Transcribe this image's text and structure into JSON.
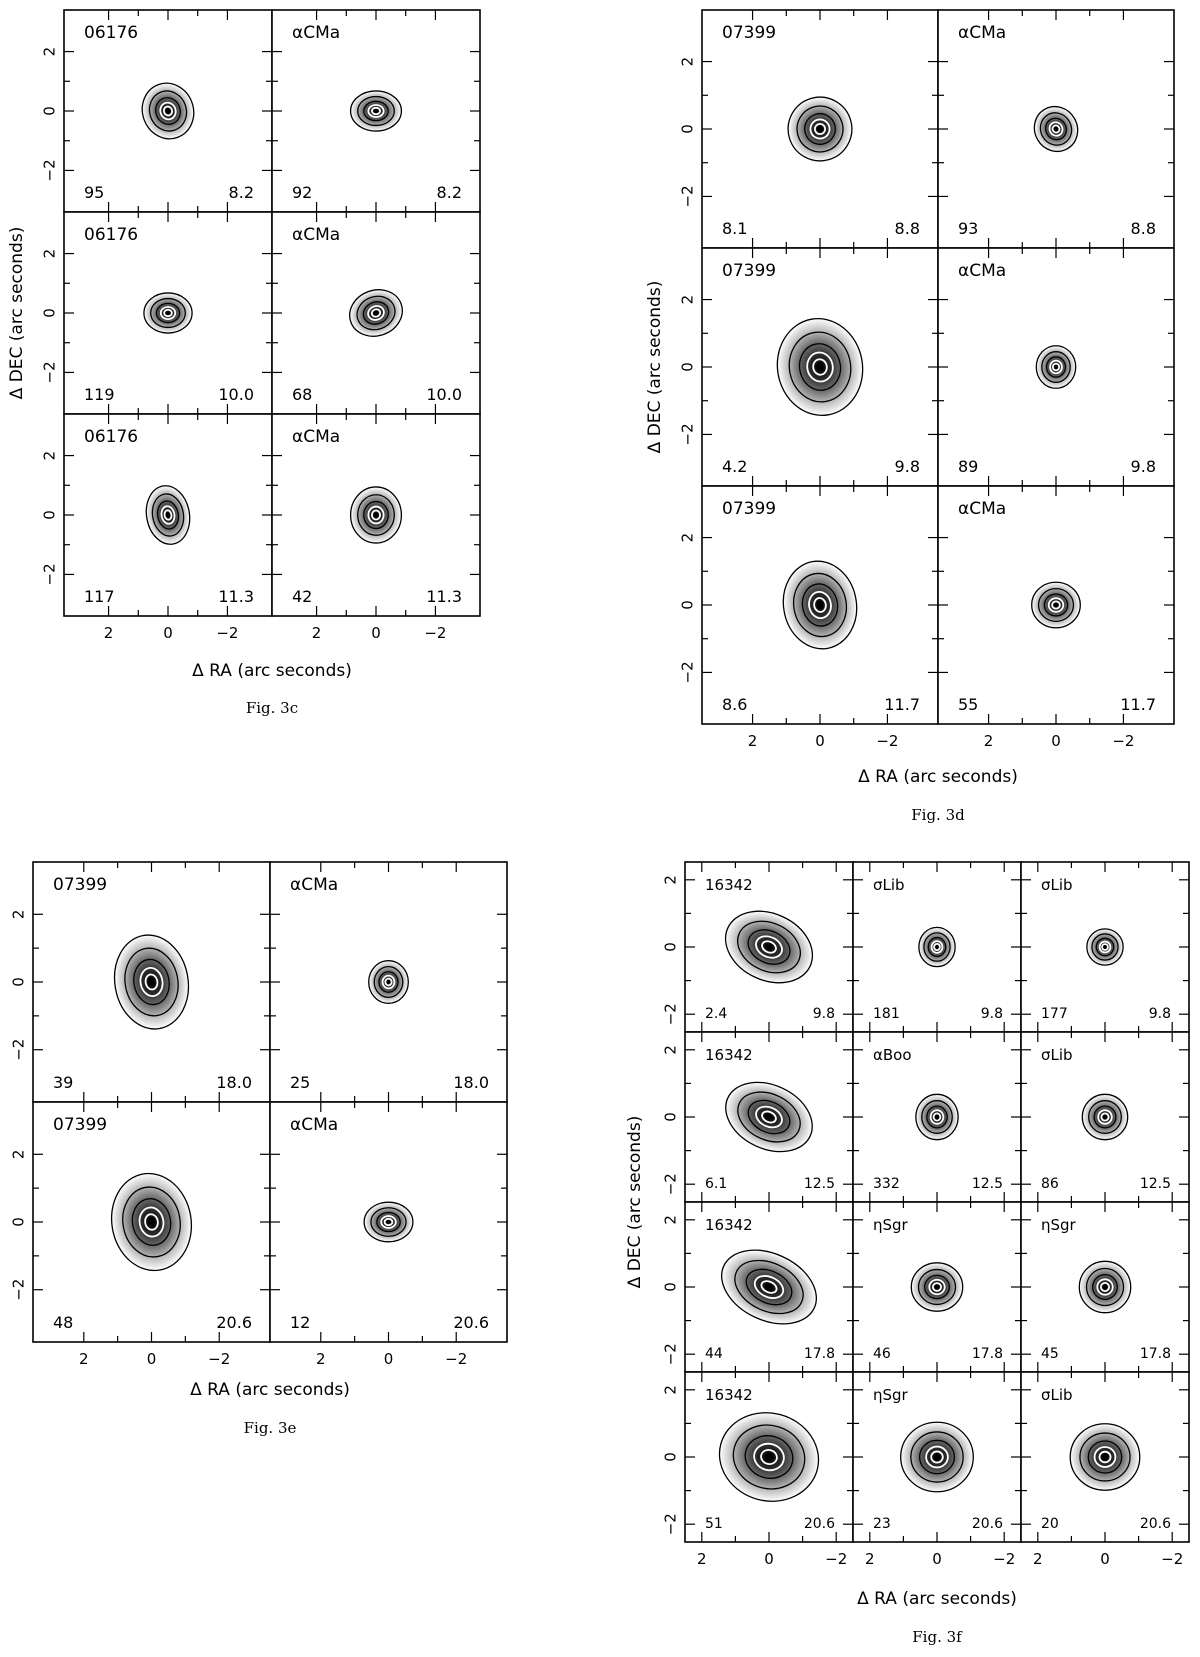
{
  "figures": [
    {
      "id": "fig3c",
      "caption": "Fig. 3c",
      "xlabel": "Δ RA (arc seconds)",
      "ylabel": "Δ DEC (arc seconds)",
      "x_ticks": [
        "2",
        "0",
        "−2"
      ],
      "y_ticks": [
        "2",
        "0",
        "−2"
      ],
      "panels": [
        {
          "row": 0,
          "col": 0,
          "name": "06176",
          "count": "95",
          "wl": "8.2",
          "shape": {
            "sx": 0.95,
            "sy": 1.05,
            "rot": -20,
            "dark": 0.95
          }
        },
        {
          "row": 0,
          "col": 1,
          "name": "αCMa",
          "count": "92",
          "wl": "8.2",
          "shape": {
            "sx": 0.95,
            "sy": 0.75,
            "rot": 0,
            "dark": 0.95
          }
        },
        {
          "row": 1,
          "col": 0,
          "name": "06176",
          "count": "119",
          "wl": "10.0",
          "shape": {
            "sx": 0.9,
            "sy": 0.75,
            "rot": 0,
            "dark": 0.95
          }
        },
        {
          "row": 1,
          "col": 1,
          "name": "αCMa",
          "count": "68",
          "wl": "10.0",
          "shape": {
            "sx": 1.0,
            "sy": 0.85,
            "rot": -20,
            "dark": 0.95
          }
        },
        {
          "row": 2,
          "col": 0,
          "name": "06176",
          "count": "117",
          "wl": "11.3",
          "shape": {
            "sx": 0.8,
            "sy": 1.1,
            "rot": -10,
            "dark": 0.95
          }
        },
        {
          "row": 2,
          "col": 1,
          "name": "αCMa",
          "count": "42",
          "wl": "11.3",
          "shape": {
            "sx": 0.95,
            "sy": 1.05,
            "rot": 0,
            "dark": 0.95
          }
        }
      ]
    },
    {
      "id": "fig3d",
      "caption": "Fig. 3d",
      "xlabel": "Δ RA (arc seconds)",
      "ylabel": "Δ DEC (arc seconds)",
      "x_ticks": [
        "2",
        "0",
        "−2"
      ],
      "y_ticks": [
        "2",
        "0",
        "−2"
      ],
      "panels": [
        {
          "row": 0,
          "col": 0,
          "name": "07399",
          "count": "8.1",
          "wl": "8.8",
          "shape": {
            "sx": 1.05,
            "sy": 1.05,
            "rot": -15,
            "dark": 1.0
          }
        },
        {
          "row": 0,
          "col": 1,
          "name": "αCMa",
          "count": "93",
          "wl": "8.8",
          "shape": {
            "sx": 0.7,
            "sy": 0.75,
            "rot": -30,
            "dark": 1.0
          }
        },
        {
          "row": 1,
          "col": 0,
          "name": "07399",
          "count": "4.2",
          "wl": "9.8",
          "shape": {
            "sx": 1.4,
            "sy": 1.6,
            "rot": -10,
            "dark": 1.0
          }
        },
        {
          "row": 1,
          "col": 1,
          "name": "αCMa",
          "count": "89",
          "wl": "9.8",
          "shape": {
            "sx": 0.65,
            "sy": 0.7,
            "rot": 0,
            "dark": 1.0
          }
        },
        {
          "row": 2,
          "col": 0,
          "name": "07399",
          "count": "8.6",
          "wl": "11.7",
          "shape": {
            "sx": 1.2,
            "sy": 1.45,
            "rot": -10,
            "dark": 1.0
          }
        },
        {
          "row": 2,
          "col": 1,
          "name": "αCMa",
          "count": "55",
          "wl": "11.7",
          "shape": {
            "sx": 0.8,
            "sy": 0.75,
            "rot": 0,
            "dark": 1.0
          }
        }
      ]
    },
    {
      "id": "fig3e",
      "caption": "Fig. 3e",
      "xlabel": "Δ RA (arc seconds)",
      "ylabel": "",
      "x_ticks": [
        "2",
        "0",
        "−2"
      ],
      "y_ticks": [
        "2",
        "0",
        "−2"
      ],
      "panels": [
        {
          "row": 0,
          "col": 0,
          "name": "07399",
          "count": "39",
          "wl": "18.0",
          "shape": {
            "sx": 1.2,
            "sy": 1.55,
            "rot": -10,
            "dark": 1.0
          }
        },
        {
          "row": 0,
          "col": 1,
          "name": "αCMa",
          "count": "25",
          "wl": "18.0",
          "shape": {
            "sx": 0.65,
            "sy": 0.7,
            "rot": 0,
            "dark": 1.0
          }
        },
        {
          "row": 1,
          "col": 0,
          "name": "07399",
          "count": "48",
          "wl": "20.6",
          "shape": {
            "sx": 1.3,
            "sy": 1.6,
            "rot": -10,
            "dark": 1.0
          }
        },
        {
          "row": 1,
          "col": 1,
          "name": "αCMa",
          "count": "12",
          "wl": "20.6",
          "shape": {
            "sx": 0.8,
            "sy": 0.65,
            "rot": 0,
            "dark": 1.0
          }
        }
      ]
    },
    {
      "id": "fig3f",
      "caption": "Fig. 3f",
      "xlabel": "Δ RA (arc seconds)",
      "ylabel": "Δ DEC (arc seconds)",
      "x_ticks": [
        "2",
        "0",
        "−2"
      ],
      "y_ticks": [
        "2",
        "0",
        "−2"
      ],
      "panels": [
        {
          "row": 0,
          "col": 0,
          "name": "16342",
          "count": "2.4",
          "wl": "9.8",
          "shape": {
            "sx": 1.5,
            "sy": 1.1,
            "rot": 25,
            "dark": 1.0
          }
        },
        {
          "row": 0,
          "col": 1,
          "name": "σLib",
          "count": "181",
          "wl": "9.8",
          "shape": {
            "sx": 0.6,
            "sy": 0.65,
            "rot": 0,
            "dark": 1.0
          }
        },
        {
          "row": 0,
          "col": 2,
          "name": "σLib",
          "count": "177",
          "wl": "9.8",
          "shape": {
            "sx": 0.6,
            "sy": 0.6,
            "rot": 0,
            "dark": 1.0
          }
        },
        {
          "row": 1,
          "col": 0,
          "name": "16342",
          "count": "6.1",
          "wl": "12.5",
          "shape": {
            "sx": 1.5,
            "sy": 1.05,
            "rot": 25,
            "dark": 1.0
          }
        },
        {
          "row": 1,
          "col": 1,
          "name": "αBoo",
          "count": "332",
          "wl": "12.5",
          "shape": {
            "sx": 0.7,
            "sy": 0.75,
            "rot": 0,
            "dark": 1.0
          }
        },
        {
          "row": 1,
          "col": 2,
          "name": "σLib",
          "count": "86",
          "wl": "12.5",
          "shape": {
            "sx": 0.75,
            "sy": 0.75,
            "rot": 0,
            "dark": 1.0
          }
        },
        {
          "row": 2,
          "col": 0,
          "name": "16342",
          "count": "44",
          "wl": "17.8",
          "shape": {
            "sx": 1.65,
            "sy": 1.1,
            "rot": 25,
            "dark": 1.0
          }
        },
        {
          "row": 2,
          "col": 1,
          "name": "ηSgr",
          "count": "46",
          "wl": "17.8",
          "shape": {
            "sx": 0.85,
            "sy": 0.8,
            "rot": 0,
            "dark": 1.0
          }
        },
        {
          "row": 2,
          "col": 2,
          "name": "ηSgr",
          "count": "45",
          "wl": "17.8",
          "shape": {
            "sx": 0.85,
            "sy": 0.85,
            "rot": 0,
            "dark": 1.0
          }
        },
        {
          "row": 3,
          "col": 0,
          "name": "16342",
          "count": "51",
          "wl": "20.6",
          "shape": {
            "sx": 1.65,
            "sy": 1.45,
            "rot": 15,
            "dark": 1.0
          }
        },
        {
          "row": 3,
          "col": 1,
          "name": "ηSgr",
          "count": "23",
          "wl": "20.6",
          "shape": {
            "sx": 1.2,
            "sy": 1.15,
            "rot": 0,
            "dark": 1.0
          }
        },
        {
          "row": 3,
          "col": 2,
          "name": "σLib",
          "count": "20",
          "wl": "20.6",
          "shape": {
            "sx": 1.15,
            "sy": 1.1,
            "rot": 0,
            "dark": 1.0
          }
        }
      ]
    }
  ]
}
